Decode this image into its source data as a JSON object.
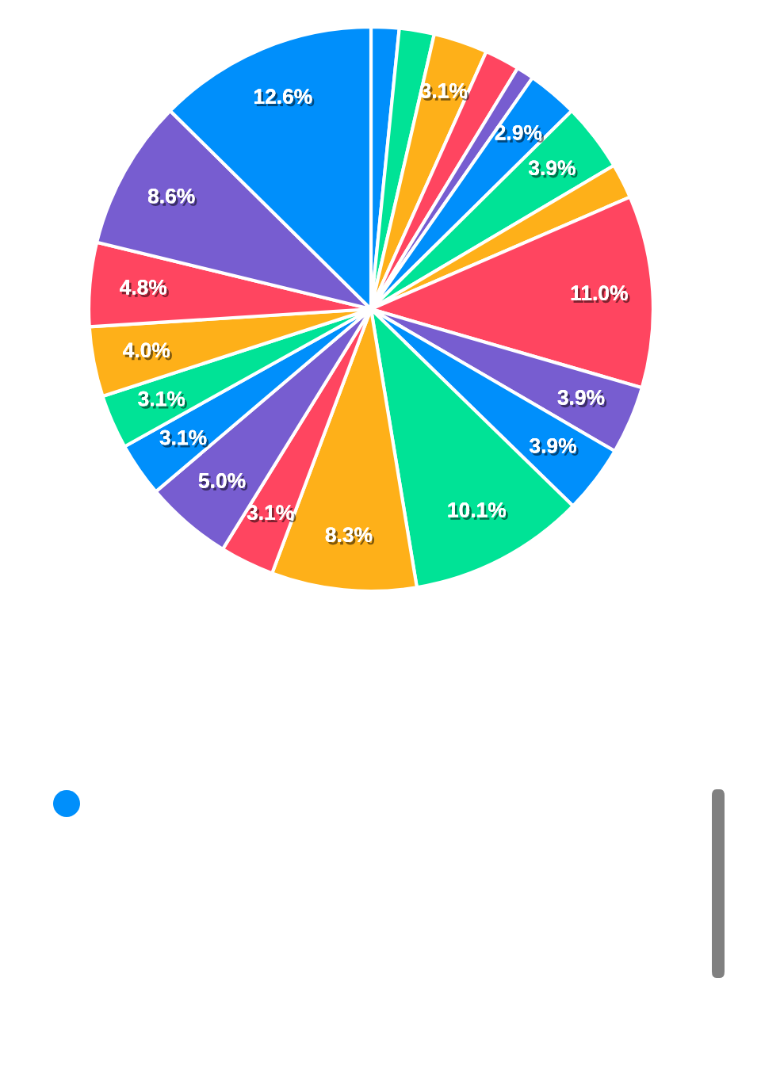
{
  "chart_data": {
    "type": "pie",
    "categories": [
      null,
      null,
      null,
      null,
      null,
      null,
      null,
      null,
      null,
      null,
      null,
      null,
      null,
      null,
      null,
      null,
      null,
      null,
      null,
      null,
      null
    ],
    "values": [
      1.6,
      2.0,
      3.1,
      2.0,
      1.0,
      2.9,
      3.9,
      2.0,
      11.0,
      3.9,
      3.9,
      10.1,
      8.3,
      3.1,
      5.0,
      3.1,
      3.1,
      4.0,
      4.8,
      8.6,
      12.6
    ],
    "colors": [
      "#008ffb",
      "#00e396",
      "#feb019",
      "#ff4560",
      "#775dd0",
      "#008ffb",
      "#00e396",
      "#feb019",
      "#ff4560",
      "#775dd0",
      "#008ffb",
      "#00e396",
      "#feb019",
      "#ff4560",
      "#775dd0",
      "#008ffb",
      "#00e396",
      "#feb019",
      "#ff4560",
      "#775dd0",
      "#008ffb"
    ],
    "value_labels": [
      null,
      null,
      "3.1%",
      null,
      null,
      "2.9%",
      "3.9%",
      null,
      "11.0%",
      "3.9%",
      "3.9%",
      "10.1%",
      "8.3%",
      "3.1%",
      "5.0%",
      "3.1%",
      "3.1%",
      "4.0%",
      "4.8%",
      "8.6%",
      "12.6%"
    ]
  }
}
